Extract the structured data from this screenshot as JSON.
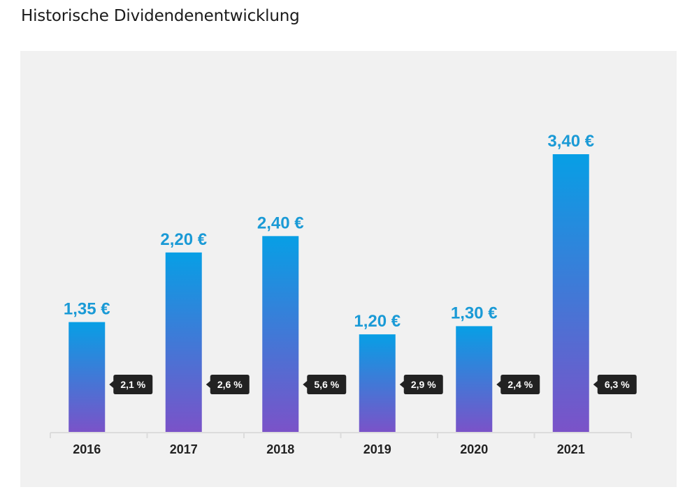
{
  "header": {
    "title": "Historische Dividendenentwicklung"
  },
  "chart_data": {
    "type": "bar",
    "title": "Historische Dividendenentwicklung",
    "xlabel": "",
    "ylabel": "",
    "categories": [
      "2016",
      "2017",
      "2018",
      "2019",
      "2020",
      "2021"
    ],
    "values": [
      1.35,
      2.2,
      2.4,
      1.2,
      1.3,
      3.4
    ],
    "value_labels": [
      "1,35 €",
      "2,20 €",
      "2,40 €",
      "1,20 €",
      "1,30 €",
      "3,40 €"
    ],
    "yield_labels": [
      "2,1 %",
      "2,6 %",
      "5,6 %",
      "2,9 %",
      "2,4 %",
      "6,3 %"
    ],
    "yield_values": [
      2.1,
      2.6,
      5.6,
      2.9,
      2.4,
      6.3
    ],
    "unit": "€",
    "ylim": [
      0,
      3.4
    ],
    "grid": false,
    "legend": "none",
    "colors": {
      "bar_top": "#079fe5",
      "bar_bottom": "#7b52c8",
      "value_label": "#1a9ad6",
      "tag_bg": "#222222",
      "tag_text": "#ffffff"
    }
  }
}
